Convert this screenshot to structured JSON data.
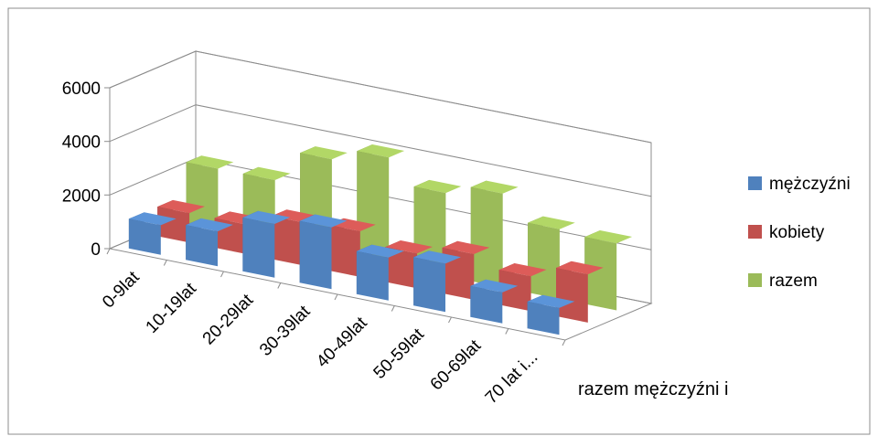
{
  "chart_data": {
    "type": "bar",
    "variant": "3d-column",
    "categories": [
      "0-9lat",
      "10-19lat",
      "20-29lat",
      "30-39lat",
      "40-49lat",
      "50-59lat",
      "60-69lat",
      "70 lat i..."
    ],
    "series": [
      {
        "name": "mężczyźni",
        "color": "#4f81bd",
        "values": [
          1100,
          1300,
          2000,
          2300,
          1600,
          1800,
          1150,
          1000
        ]
      },
      {
        "name": "kobiety",
        "color": "#c0504d",
        "values": [
          1100,
          1100,
          1600,
          1700,
          1300,
          1700,
          1300,
          1800
        ]
      },
      {
        "name": "razem",
        "color": "#9bbb59",
        "values": [
          2300,
          2300,
          3500,
          4000,
          3100,
          3500,
          2600,
          2500
        ]
      }
    ],
    "depth_axis_label": "razem mężczyźni i",
    "y_ticks": [
      "0",
      "2000",
      "4000",
      "6000"
    ],
    "ylim": [
      0,
      6000
    ],
    "grid": true,
    "legend_position": "right"
  }
}
